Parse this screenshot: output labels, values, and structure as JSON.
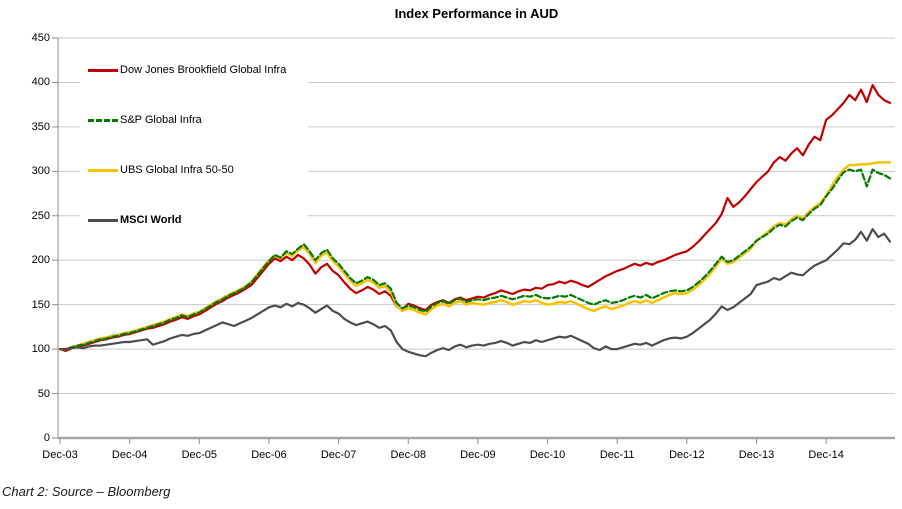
{
  "title": "Index Performance in AUD",
  "caption": "Chart 2: Source – Bloomberg",
  "colors": {
    "dow_jones_red": "#C00000",
    "sp_green": "#007A00",
    "ubs_yellow": "#FFC000",
    "msci_gray": "#4D4D4D",
    "gridline": "#C9C9C9",
    "axis": "#8C8C8C"
  },
  "legend": [
    {
      "label": "Dow Jones Brookfield Global Infra",
      "color": "#C00000",
      "style": "solid",
      "bold": false
    },
    {
      "label": "S&P Global Infra",
      "color": "#007A00",
      "style": "dashed",
      "bold": false
    },
    {
      "label": "UBS Global Infra 50-50",
      "color": "#FFC000",
      "style": "solid",
      "bold": false
    },
    {
      "label": "MSCI World",
      "color": "#4D4D4D",
      "style": "solid",
      "bold": true
    }
  ],
  "chart_data": {
    "type": "line",
    "title": "Index Performance in AUD",
    "xlabel": "",
    "ylabel": "",
    "ylim": [
      0,
      450
    ],
    "y_tick_step": 50,
    "y_tick_labels": [
      "0",
      "50",
      "100",
      "150",
      "200",
      "250",
      "300",
      "350",
      "400",
      "450"
    ],
    "x_tick_labels": [
      "Dec-03",
      "Dec-04",
      "Dec-05",
      "Dec-06",
      "Dec-07",
      "Dec-08",
      "Dec-09",
      "Dec-10",
      "Dec-11",
      "Dec-12",
      "Dec-13",
      "Dec-14"
    ],
    "x_months_per_tick": 12,
    "x_start": "Dec-03",
    "x_end": "Nov-15",
    "grid": true,
    "legend_position": "upper-left-inside",
    "base_value": 100,
    "series": [
      {
        "name": "Dow Jones Brookfield Global Infra",
        "color": "#C00000",
        "dash": "solid",
        "width": 2.2,
        "values": [
          100,
          98,
          101,
          103,
          104,
          106,
          108,
          110,
          111,
          113,
          114,
          116,
          117,
          119,
          121,
          123,
          124,
          126,
          128,
          131,
          133,
          136,
          134,
          137,
          139,
          143,
          147,
          151,
          154,
          158,
          161,
          164,
          168,
          172,
          180,
          188,
          196,
          202,
          199,
          204,
          200,
          206,
          202,
          195,
          185,
          192,
          196,
          188,
          183,
          175,
          168,
          163,
          166,
          170,
          167,
          162,
          165,
          160,
          148,
          145,
          151,
          149,
          146,
          144,
          150,
          153,
          155,
          152,
          156,
          158,
          155,
          157,
          159,
          158,
          161,
          163,
          166,
          164,
          162,
          165,
          167,
          166,
          169,
          168,
          172,
          173,
          176,
          174,
          177,
          175,
          172,
          170,
          174,
          178,
          182,
          185,
          188,
          190,
          193,
          196,
          194,
          197,
          195,
          198,
          200,
          203,
          206,
          208,
          210,
          215,
          221,
          228,
          235,
          242,
          252,
          270,
          260,
          265,
          272,
          280,
          288,
          294,
          300,
          310,
          316,
          312,
          320,
          326,
          318,
          330,
          339,
          335,
          358,
          363,
          370,
          377,
          386,
          380,
          392,
          378,
          397,
          386,
          380,
          377
        ]
      },
      {
        "name": "UBS Global Infra 50-50",
        "color": "#FFC000",
        "dash": "solid",
        "width": 2.5,
        "values": [
          100,
          100,
          102,
          104,
          106,
          108,
          110,
          112,
          113,
          115,
          116,
          118,
          119,
          121,
          123,
          125,
          127,
          129,
          131,
          134,
          136,
          139,
          137,
          140,
          142,
          146,
          150,
          154,
          157,
          161,
          164,
          167,
          171,
          176,
          184,
          192,
          200,
          205,
          202,
          208,
          205,
          211,
          215,
          207,
          197,
          205,
          209,
          199,
          193,
          185,
          177,
          171,
          174,
          178,
          175,
          169,
          171,
          165,
          149,
          143,
          146,
          144,
          141,
          139,
          145,
          149,
          151,
          148,
          152,
          154,
          150,
          152,
          151,
          150,
          152,
          153,
          155,
          153,
          150,
          152,
          154,
          153,
          155,
          152,
          150,
          151,
          153,
          152,
          154,
          151,
          148,
          145,
          143,
          146,
          148,
          145,
          147,
          149,
          152,
          154,
          152,
          155,
          152,
          155,
          158,
          161,
          163,
          162,
          163,
          167,
          172,
          178,
          185,
          193,
          202,
          196,
          198,
          203,
          208,
          213,
          222,
          227,
          232,
          238,
          242,
          240,
          246,
          250,
          247,
          254,
          260,
          264,
          273,
          284,
          294,
          302,
          307,
          307,
          308,
          308,
          309,
          310,
          310,
          310
        ]
      },
      {
        "name": "S&P Global Infra",
        "color": "#007A00",
        "dash": "dashed",
        "width": 2.2,
        "values": [
          100,
          100,
          102,
          104,
          105,
          107,
          109,
          111,
          112,
          114,
          115,
          117,
          118,
          120,
          122,
          124,
          126,
          128,
          130,
          133,
          135,
          138,
          136,
          139,
          141,
          145,
          149,
          153,
          156,
          160,
          163,
          166,
          170,
          175,
          183,
          191,
          199,
          206,
          203,
          210,
          207,
          213,
          218,
          210,
          200,
          208,
          212,
          202,
          196,
          188,
          180,
          174,
          177,
          181,
          178,
          172,
          174,
          168,
          152,
          146,
          149,
          147,
          144,
          142,
          148,
          152,
          154,
          151,
          155,
          157,
          153,
          155,
          156,
          155,
          157,
          158,
          160,
          158,
          156,
          158,
          160,
          159,
          161,
          158,
          157,
          158,
          160,
          159,
          161,
          158,
          155,
          152,
          150,
          153,
          155,
          152,
          153,
          155,
          158,
          160,
          158,
          161,
          157,
          160,
          163,
          165,
          166,
          165,
          166,
          170,
          175,
          181,
          188,
          196,
          204,
          198,
          200,
          205,
          210,
          215,
          222,
          226,
          230,
          236,
          240,
          238,
          244,
          248,
          245,
          252,
          258,
          262,
          272,
          280,
          290,
          299,
          302,
          300,
          302,
          283,
          302,
          298,
          296,
          292
        ]
      },
      {
        "name": "MSCI World",
        "color": "#4D4D4D",
        "dash": "solid",
        "width": 2.2,
        "values": [
          100,
          100,
          101,
          102,
          101,
          103,
          104,
          104,
          105,
          106,
          107,
          108,
          108,
          109,
          110,
          111,
          105,
          107,
          109,
          112,
          114,
          116,
          115,
          117,
          118,
          121,
          124,
          127,
          130,
          128,
          126,
          129,
          132,
          135,
          139,
          143,
          147,
          149,
          147,
          151,
          148,
          152,
          150,
          146,
          141,
          145,
          149,
          143,
          140,
          134,
          130,
          127,
          129,
          131,
          128,
          124,
          126,
          121,
          108,
          100,
          97,
          95,
          93,
          92,
          96,
          99,
          101,
          99,
          103,
          105,
          102,
          104,
          105,
          104,
          106,
          107,
          109,
          107,
          104,
          106,
          108,
          107,
          110,
          108,
          110,
          112,
          114,
          113,
          115,
          112,
          109,
          106,
          101,
          99,
          103,
          100,
          100,
          102,
          104,
          106,
          105,
          107,
          104,
          107,
          110,
          112,
          113,
          112,
          114,
          118,
          123,
          128,
          133,
          140,
          148,
          144,
          147,
          152,
          157,
          162,
          172,
          174,
          176,
          180,
          178,
          182,
          186,
          184,
          183,
          189,
          194,
          197,
          200,
          206,
          212,
          219,
          218,
          223,
          232,
          222,
          235,
          226,
          230,
          221
        ]
      }
    ]
  }
}
